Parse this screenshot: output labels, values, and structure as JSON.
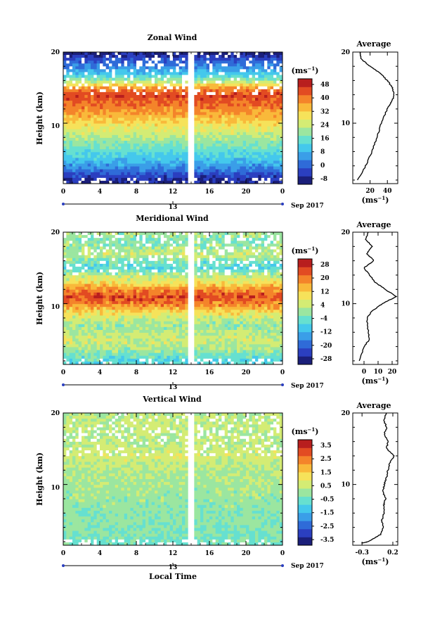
{
  "colors": {
    "palette": [
      "#1b1f7a",
      "#2b3fc0",
      "#2f6bd8",
      "#3a9ee8",
      "#44c8ec",
      "#66e0d0",
      "#9be6a0",
      "#d4ec74",
      "#f6e25a",
      "#f9b93a",
      "#f4842a",
      "#e24b22",
      "#b81e1e"
    ]
  },
  "panels": [
    {
      "title": "Zonal Wind",
      "ylabel": "Height (km)",
      "yticks": [
        "20",
        "10"
      ],
      "xticks": [
        "0",
        "4",
        "8",
        "12",
        "16",
        "20",
        "0"
      ],
      "date_tick": "13",
      "month_label": "Sep 2017",
      "colorbar_unit": "(ms⁻¹)",
      "colorbar_ticks": [
        "48",
        "40",
        "32",
        "24",
        "16",
        "8",
        "0",
        "-8"
      ],
      "avg_title": "Average",
      "avg_yticks": [
        "20",
        "10"
      ],
      "avg_xticks": [
        "20",
        "40"
      ],
      "avg_xlabel": "(ms⁻¹)"
    },
    {
      "title": "Meridional Wind",
      "ylabel": "Height (km)",
      "yticks": [
        "20",
        "10"
      ],
      "xticks": [
        "0",
        "4",
        "8",
        "12",
        "16",
        "20",
        "0"
      ],
      "date_tick": "13",
      "month_label": "Sep 2017",
      "colorbar_unit": "(ms⁻¹)",
      "colorbar_ticks": [
        "28",
        "20",
        "12",
        "4",
        "-4",
        "-12",
        "-20",
        "-28"
      ],
      "avg_title": "Average",
      "avg_yticks": [
        "20",
        "10"
      ],
      "avg_xticks": [
        "0",
        "10",
        "20"
      ],
      "avg_xlabel": "(ms⁻¹)"
    },
    {
      "title": "Vertical Wind",
      "ylabel": "Height (km)",
      "yticks": [
        "20",
        "10"
      ],
      "xticks": [
        "0",
        "4",
        "8",
        "12",
        "16",
        "20",
        "0"
      ],
      "date_tick": "13",
      "month_label": "Sep 2017",
      "colorbar_unit": "(ms⁻¹)",
      "colorbar_ticks": [
        "3.5",
        "2.5",
        "1.5",
        "0.5",
        "-0.5",
        "-1.5",
        "-2.5",
        "-3.5"
      ],
      "avg_title": "Average",
      "avg_yticks": [
        "20",
        "10"
      ],
      "avg_xticks": [
        "-0.3",
        "0.2"
      ],
      "avg_xlabel": "(ms⁻¹)",
      "xlabel": "Local Time"
    }
  ],
  "chart_data": [
    {
      "type": "heatmap",
      "title": "Zonal Wind",
      "ylabel": "Height (km)",
      "x_range": [
        0,
        24
      ],
      "ylim": [
        1.5,
        20
      ],
      "color_range": [
        -8,
        52
      ],
      "height_profile": [
        [
          2,
          -4
        ],
        [
          3,
          2
        ],
        [
          4,
          8
        ],
        [
          5,
          13
        ],
        [
          6,
          16
        ],
        [
          7,
          20
        ],
        [
          8,
          24
        ],
        [
          9,
          28
        ],
        [
          10,
          32
        ],
        [
          11,
          36
        ],
        [
          12,
          40
        ],
        [
          13,
          44
        ],
        [
          14,
          46
        ],
        [
          15,
          38
        ],
        [
          16,
          22
        ],
        [
          17,
          12
        ],
        [
          18,
          6
        ],
        [
          19,
          0
        ],
        [
          20,
          -6
        ]
      ],
      "average": {
        "heights": [
          2,
          4,
          6,
          8,
          10,
          12,
          13,
          14,
          15,
          16,
          17,
          18,
          19,
          20
        ],
        "values": [
          6,
          15,
          22,
          28,
          33,
          40,
          45,
          48,
          46,
          40,
          32,
          20,
          10,
          8
        ]
      }
    },
    {
      "type": "heatmap",
      "title": "Meridional Wind",
      "ylabel": "Height (km)",
      "x_range": [
        0,
        24
      ],
      "ylim": [
        1.5,
        20
      ],
      "color_range": [
        -28,
        28
      ],
      "height_profile": [
        [
          2,
          -6
        ],
        [
          3,
          -2
        ],
        [
          4,
          2
        ],
        [
          5,
          4
        ],
        [
          6,
          2
        ],
        [
          7,
          0
        ],
        [
          8,
          4
        ],
        [
          9,
          10
        ],
        [
          10,
          18
        ],
        [
          11,
          22
        ],
        [
          12,
          16
        ],
        [
          13,
          8
        ],
        [
          14,
          2
        ],
        [
          15,
          -6
        ],
        [
          16,
          -2
        ],
        [
          17,
          4
        ],
        [
          18,
          0
        ],
        [
          19,
          -2
        ],
        [
          20,
          2
        ]
      ],
      "average": {
        "heights": [
          2,
          4,
          5,
          6,
          8,
          9,
          10,
          11,
          12,
          13,
          14,
          15,
          16,
          17,
          18,
          19,
          20
        ],
        "values": [
          -3,
          0,
          4,
          3,
          2,
          6,
          13,
          23,
          15,
          8,
          4,
          0,
          7,
          2,
          6,
          1,
          3
        ]
      }
    },
    {
      "type": "heatmap",
      "title": "Vertical Wind",
      "ylabel": "Height (km)",
      "x_range": [
        0,
        24
      ],
      "ylim": [
        1.5,
        20
      ],
      "color_range": [
        -3.5,
        3.5
      ],
      "height_profile": [
        [
          2,
          -0.4
        ],
        [
          4,
          -0.2
        ],
        [
          6,
          -0.1
        ],
        [
          8,
          0
        ],
        [
          10,
          0.1
        ],
        [
          12,
          0.2
        ],
        [
          14,
          0.6
        ],
        [
          16,
          0.3
        ],
        [
          18,
          0.4
        ],
        [
          20,
          0.3
        ]
      ],
      "average": {
        "heights": [
          1.8,
          2,
          3,
          4,
          5,
          6,
          7,
          8,
          9,
          10,
          11,
          12,
          13,
          14,
          15,
          16,
          17,
          18,
          19,
          20
        ],
        "values": [
          -0.3,
          -0.2,
          0,
          0.05,
          0.02,
          0.06,
          0.05,
          0.08,
          0.04,
          0.06,
          0.1,
          0.12,
          0.15,
          0.22,
          0.1,
          0.12,
          0.06,
          0.1,
          0.05,
          0.1
        ]
      }
    }
  ]
}
